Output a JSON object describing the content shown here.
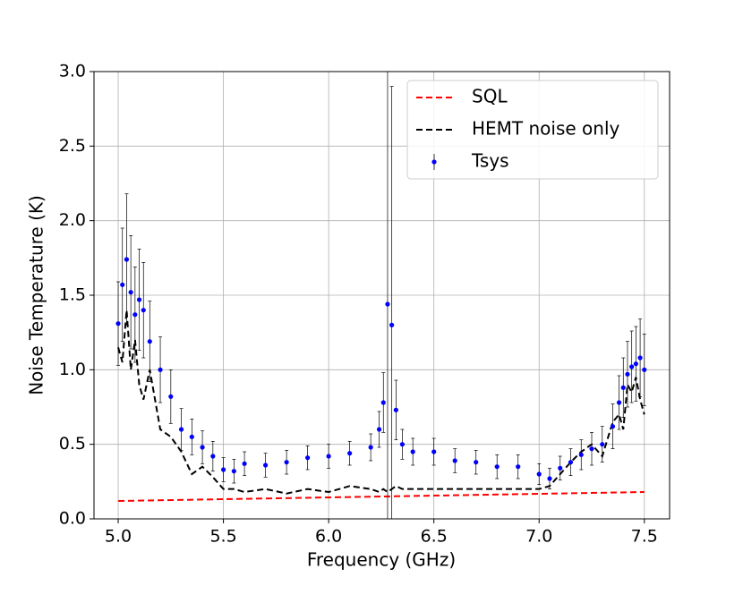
{
  "chart_data": {
    "type": "errorbar",
    "xlabel": "Frequency (GHz)",
    "ylabel": "Noise Temperature (K)",
    "xlim": [
      4.885,
      7.62
    ],
    "ylim": [
      0,
      3
    ],
    "xticks": [
      {
        "value": 5,
        "label": "5.0"
      },
      5.5,
      {
        "value": 6,
        "label": "6.0"
      },
      6.5,
      {
        "value": 7,
        "label": "7.0"
      },
      7.5
    ],
    "yticks": [
      {
        "value": 0,
        "label": "0.0"
      },
      0.5,
      {
        "value": 1,
        "label": "1.0"
      },
      1.5,
      {
        "value": 2,
        "label": "2.0"
      },
      2.5,
      {
        "value": 3,
        "label": "3.0"
      }
    ],
    "grid": true,
    "legend": "upper right",
    "series": [
      {
        "name": "SQL",
        "color": "#ff0000",
        "style": "dashed",
        "x": [
          5.0,
          7.5
        ],
        "values": [
          0.12,
          0.18
        ]
      },
      {
        "name": "HEMT noise only",
        "color": "#000000",
        "style": "dashed",
        "x": [
          5.0,
          5.02,
          5.04,
          5.06,
          5.08,
          5.1,
          5.12,
          5.15,
          5.2,
          5.25,
          5.3,
          5.35,
          5.4,
          5.45,
          5.5,
          5.55,
          5.6,
          5.7,
          5.8,
          5.9,
          6.0,
          6.1,
          6.2,
          6.24,
          6.26,
          6.28,
          6.3,
          6.32,
          6.35,
          6.4,
          6.5,
          6.6,
          6.7,
          6.8,
          6.9,
          7.0,
          7.05,
          7.1,
          7.15,
          7.2,
          7.25,
          7.3,
          7.35,
          7.38,
          7.4,
          7.42,
          7.44,
          7.46,
          7.48,
          7.5
        ],
        "values": [
          1.15,
          1.05,
          1.4,
          1.0,
          1.2,
          0.9,
          0.8,
          1.0,
          0.6,
          0.55,
          0.45,
          0.3,
          0.35,
          0.28,
          0.2,
          0.2,
          0.18,
          0.2,
          0.17,
          0.2,
          0.18,
          0.22,
          0.2,
          0.18,
          0.2,
          0.18,
          0.2,
          0.22,
          0.2,
          0.2,
          0.2,
          0.2,
          0.2,
          0.2,
          0.2,
          0.2,
          0.22,
          0.3,
          0.38,
          0.45,
          0.5,
          0.42,
          0.65,
          0.7,
          0.6,
          0.9,
          0.85,
          0.95,
          0.8,
          0.7
        ]
      },
      {
        "name": "Tsys",
        "color": "#0000ff",
        "style": "errorbar",
        "x": [
          5.0,
          5.02,
          5.04,
          5.06,
          5.08,
          5.1,
          5.12,
          5.15,
          5.2,
          5.25,
          5.3,
          5.35,
          5.4,
          5.45,
          5.5,
          5.55,
          5.6,
          5.7,
          5.8,
          5.9,
          6.0,
          6.1,
          6.2,
          6.24,
          6.26,
          6.28,
          6.3,
          6.32,
          6.35,
          6.4,
          6.5,
          6.6,
          6.7,
          6.8,
          6.9,
          7.0,
          7.05,
          7.1,
          7.15,
          7.2,
          7.25,
          7.3,
          7.35,
          7.38,
          7.4,
          7.42,
          7.44,
          7.46,
          7.48,
          7.5
        ],
        "values": [
          1.31,
          1.57,
          1.74,
          1.52,
          1.37,
          1.47,
          1.4,
          1.19,
          1.0,
          0.82,
          0.6,
          0.55,
          0.48,
          0.42,
          0.33,
          0.32,
          0.37,
          0.36,
          0.38,
          0.41,
          0.42,
          0.44,
          0.48,
          0.6,
          0.78,
          1.44,
          1.3,
          0.73,
          0.5,
          0.45,
          0.45,
          0.39,
          0.38,
          0.35,
          0.35,
          0.3,
          0.27,
          0.34,
          0.38,
          0.43,
          0.47,
          0.5,
          0.62,
          0.78,
          0.88,
          0.97,
          1.02,
          1.04,
          1.08,
          1.0
        ],
        "errors": [
          0.28,
          0.38,
          0.44,
          0.38,
          0.32,
          0.34,
          0.32,
          0.27,
          0.22,
          0.18,
          0.14,
          0.12,
          0.11,
          0.1,
          0.08,
          0.08,
          0.08,
          0.08,
          0.08,
          0.08,
          0.08,
          0.08,
          0.09,
          0.12,
          0.2,
          1.8,
          1.6,
          0.2,
          0.1,
          0.09,
          0.09,
          0.08,
          0.08,
          0.08,
          0.08,
          0.07,
          0.07,
          0.08,
          0.09,
          0.1,
          0.11,
          0.12,
          0.15,
          0.18,
          0.2,
          0.22,
          0.24,
          0.25,
          0.26,
          0.24
        ]
      }
    ]
  }
}
